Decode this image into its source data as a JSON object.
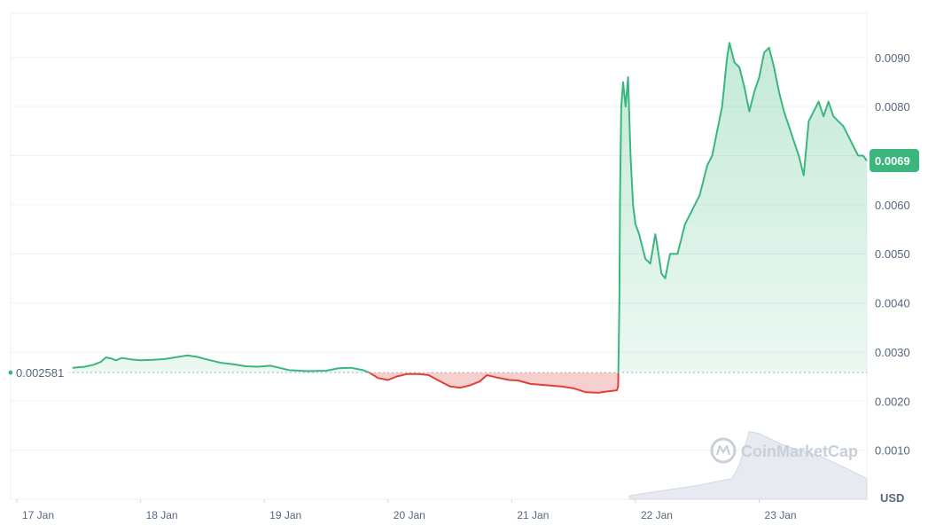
{
  "chart_data": {
    "type": "area",
    "currency": "USD",
    "watermark": "CoinMarketCap",
    "reference_price": 0.002581,
    "reference_label": "0.002581",
    "current_price_label": "0.0069",
    "ylim": [
      0,
      0.0099
    ],
    "y_ticks": [
      {
        "value": 0.001,
        "label": "0.0010"
      },
      {
        "value": 0.002,
        "label": "0.0020"
      },
      {
        "value": 0.003,
        "label": "0.0030"
      },
      {
        "value": 0.004,
        "label": "0.0040"
      },
      {
        "value": 0.005,
        "label": "0.0050"
      },
      {
        "value": 0.006,
        "label": "0.0060"
      },
      {
        "value": 0.007,
        "label": "0.0070"
      },
      {
        "value": 0.008,
        "label": "0.0080"
      },
      {
        "value": 0.009,
        "label": "0.0090"
      }
    ],
    "x_ticks": [
      {
        "value": 0,
        "label": "17 Jan"
      },
      {
        "value": 1,
        "label": "18 Jan"
      },
      {
        "value": 2,
        "label": "19 Jan"
      },
      {
        "value": 3,
        "label": "20 Jan"
      },
      {
        "value": 4,
        "label": "21 Jan"
      },
      {
        "value": 5,
        "label": "22 Jan"
      },
      {
        "value": 6,
        "label": "23 Jan"
      }
    ],
    "xlim": [
      -0.05,
      6.87
    ],
    "colors": {
      "up": "#3bb77e",
      "down": "#e0403a",
      "grid": "#eff2f5",
      "text": "#58667e"
    },
    "series": [
      {
        "points": [
          [
            0.45,
            0.00268
          ],
          [
            0.55,
            0.0027
          ],
          [
            0.62,
            0.00274
          ],
          [
            0.68,
            0.0028
          ],
          [
            0.72,
            0.00289
          ],
          [
            0.76,
            0.00287
          ],
          [
            0.8,
            0.00283
          ],
          [
            0.85,
            0.00288
          ],
          [
            0.92,
            0.00285
          ],
          [
            1.0,
            0.00283
          ],
          [
            1.1,
            0.00284
          ],
          [
            1.2,
            0.00286
          ],
          [
            1.3,
            0.0029
          ],
          [
            1.38,
            0.00293
          ],
          [
            1.46,
            0.0029
          ],
          [
            1.55,
            0.00284
          ],
          [
            1.65,
            0.00278
          ],
          [
            1.75,
            0.00275
          ],
          [
            1.85,
            0.00271
          ],
          [
            1.95,
            0.0027
          ],
          [
            2.05,
            0.00272
          ],
          [
            2.12,
            0.00268
          ],
          [
            2.2,
            0.00263
          ],
          [
            2.35,
            0.00261
          ],
          [
            2.5,
            0.00262
          ],
          [
            2.6,
            0.00267
          ],
          [
            2.7,
            0.00268
          ],
          [
            2.8,
            0.00263
          ],
          [
            2.85,
            0.00258
          ],
          [
            2.92,
            0.00247
          ],
          [
            3.0,
            0.00243
          ],
          [
            3.07,
            0.0025
          ],
          [
            3.15,
            0.00255
          ],
          [
            3.25,
            0.00255
          ],
          [
            3.33,
            0.00253
          ],
          [
            3.4,
            0.00243
          ],
          [
            3.5,
            0.0023
          ],
          [
            3.58,
            0.00227
          ],
          [
            3.66,
            0.00232
          ],
          [
            3.74,
            0.0024
          ],
          [
            3.8,
            0.00253
          ],
          [
            3.88,
            0.00248
          ],
          [
            3.98,
            0.00243
          ],
          [
            4.05,
            0.00242
          ],
          [
            4.15,
            0.00235
          ],
          [
            4.3,
            0.00232
          ],
          [
            4.4,
            0.0023
          ],
          [
            4.5,
            0.00226
          ],
          [
            4.6,
            0.00218
          ],
          [
            4.7,
            0.00217
          ],
          [
            4.78,
            0.0022
          ],
          [
            4.85,
            0.00222
          ],
          [
            4.86,
            0.0023
          ],
          [
            4.87,
            0.004
          ],
          [
            4.875,
            0.0061
          ],
          [
            4.885,
            0.008
          ],
          [
            4.9,
            0.0085
          ],
          [
            4.92,
            0.008
          ],
          [
            4.94,
            0.0086
          ],
          [
            4.96,
            0.007
          ],
          [
            4.98,
            0.006
          ],
          [
            5.0,
            0.0056
          ],
          [
            5.03,
            0.0054
          ],
          [
            5.05,
            0.0052
          ],
          [
            5.08,
            0.0049
          ],
          [
            5.12,
            0.0048
          ],
          [
            5.16,
            0.0054
          ],
          [
            5.18,
            0.0051
          ],
          [
            5.21,
            0.0046
          ],
          [
            5.24,
            0.0045
          ],
          [
            5.28,
            0.005
          ],
          [
            5.34,
            0.005
          ],
          [
            5.4,
            0.0056
          ],
          [
            5.46,
            0.0059
          ],
          [
            5.52,
            0.0062
          ],
          [
            5.58,
            0.0068
          ],
          [
            5.62,
            0.007
          ],
          [
            5.66,
            0.0075
          ],
          [
            5.7,
            0.008
          ],
          [
            5.74,
            0.009
          ],
          [
            5.76,
            0.0093
          ],
          [
            5.8,
            0.0089
          ],
          [
            5.84,
            0.0088
          ],
          [
            5.88,
            0.0084
          ],
          [
            5.92,
            0.0079
          ],
          [
            5.96,
            0.0083
          ],
          [
            6.0,
            0.0086
          ],
          [
            6.04,
            0.0091
          ],
          [
            6.08,
            0.0092
          ],
          [
            6.12,
            0.0088
          ],
          [
            6.16,
            0.0083
          ],
          [
            6.2,
            0.0079
          ],
          [
            6.24,
            0.0076
          ],
          [
            6.28,
            0.0073
          ],
          [
            6.32,
            0.007
          ],
          [
            6.36,
            0.0066
          ],
          [
            6.4,
            0.0077
          ],
          [
            6.44,
            0.0079
          ],
          [
            6.48,
            0.0081
          ],
          [
            6.52,
            0.0078
          ],
          [
            6.56,
            0.0081
          ],
          [
            6.6,
            0.0078
          ],
          [
            6.64,
            0.0077
          ],
          [
            6.68,
            0.0076
          ],
          [
            6.72,
            0.0074
          ],
          [
            6.76,
            0.0072
          ],
          [
            6.8,
            0.007
          ],
          [
            6.84,
            0.007
          ],
          [
            6.87,
            0.0069
          ]
        ]
      }
    ],
    "volume": {
      "ylim": [
        0,
        1
      ],
      "points": [
        [
          4.95,
          0.05
        ],
        [
          5.2,
          0.12
        ],
        [
          5.5,
          0.2
        ],
        [
          5.78,
          0.3
        ],
        [
          5.84,
          0.5
        ],
        [
          5.92,
          0.98
        ],
        [
          6.0,
          0.95
        ],
        [
          6.2,
          0.78
        ],
        [
          6.5,
          0.62
        ],
        [
          6.7,
          0.45
        ],
        [
          6.87,
          0.3
        ]
      ]
    }
  }
}
